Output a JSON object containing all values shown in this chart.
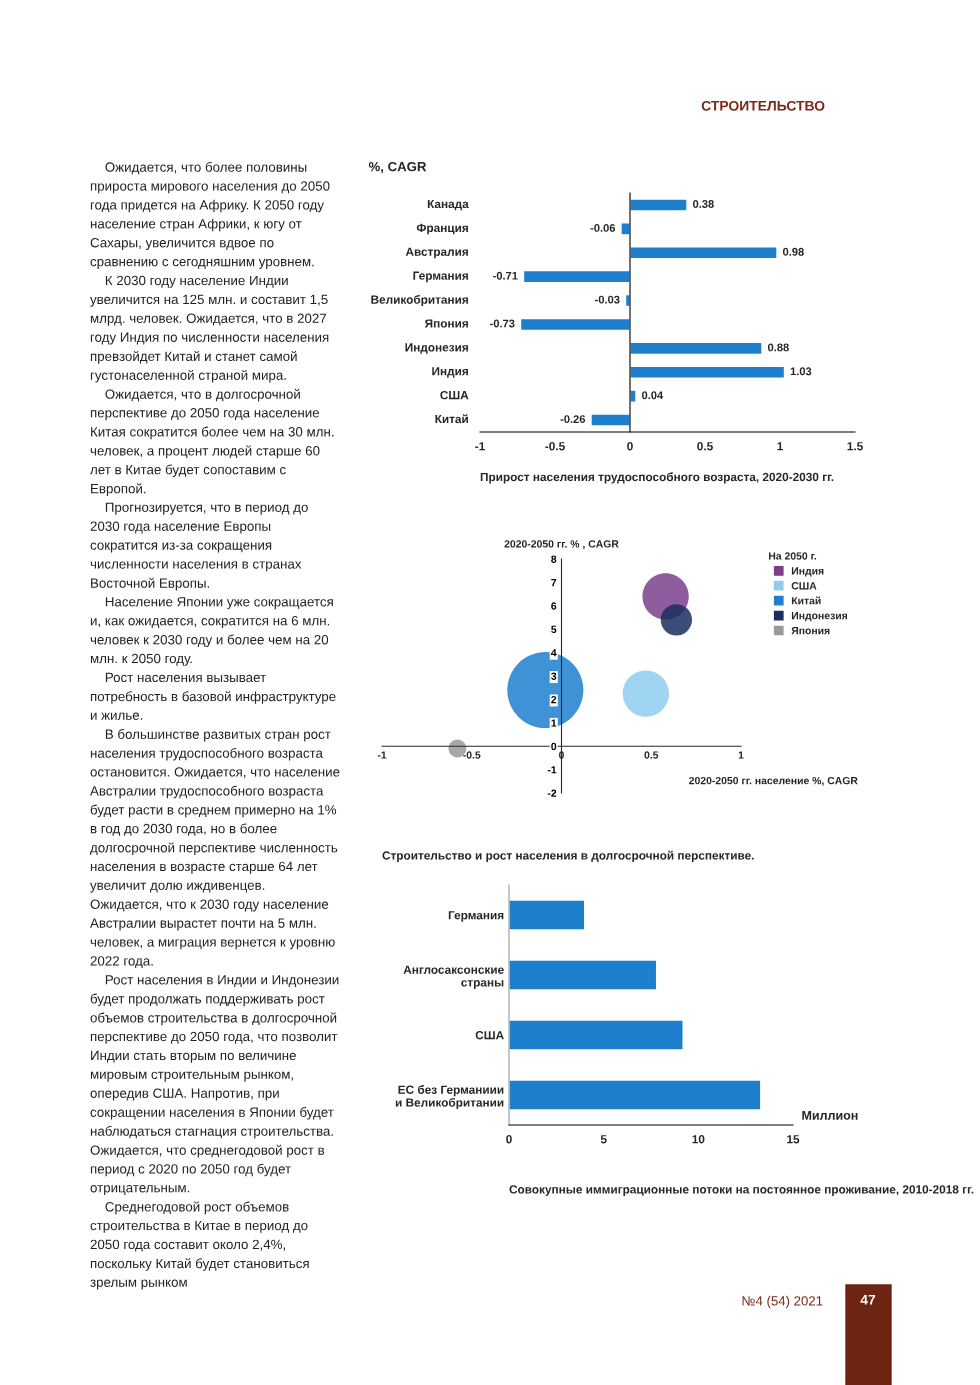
{
  "chart_data": [
    {
      "type": "bar",
      "orientation": "horizontal",
      "title": "Прирост населения трудоспособного возраста, 2020-2030 гг.",
      "ylabel": "%, CAGR",
      "categories": [
        "Канада",
        "Франция",
        "Австралия",
        "Германия",
        "Великобритания",
        "Япония",
        "Индонезия",
        "Индия",
        "США",
        "Китай"
      ],
      "values": [
        0.38,
        -0.06,
        0.98,
        -0.71,
        -0.03,
        -0.73,
        0.88,
        1.03,
        0.04,
        -0.26
      ],
      "color": "#1f7fcf",
      "data_labels": true,
      "xlim": [
        -1,
        1.5
      ],
      "xticks": [
        -1,
        -0.5,
        0,
        0.5,
        1,
        1.5
      ],
      "annotations": [
        "СТРОИТЕЛЬСТВО",
        "Ожидается, что более половины прироста мирового населения до 2050 года придется на Африку. К 2050 году население стран Африки, к югу от Сахары, увеличится вдвое по сравнению с сегодняшним уровнем.",
        "К 2030 году население Индии увеличится на 125 млн. и составит 1,5 млрд. человек. Ожидается, что в 2027 году Индия по численности населения превзойдет Китай и станет самой густонаселенной страной мира.",
        "Ожидается, что в долгосрочной перспективе до 2050 года население Китая сократится более чем на 30 млн. человек, а процент людей старше 60 лет в Китае будет сопоставим с Европой.",
        "Прогнозируется, что в период до 2030 года население Европы сократится из-за сокращения численности населения в странах Восточной Европы.",
        "Население Японии уже сокращается и, как ожидается, сократится на 6 млн. человек к 2030 году и более чем на 20 млн. к 2050 году.",
        "Рост населения вызывает потребность в базовой инфраструктуре и жилье.",
        "В большинстве развитых стран рост населения трудоспособного возраста остановится. Ожидается, что население Австралии трудоспособного возраста будет расти в среднем примерно на 1% в год до 2030 года, но в более долгосрочной перспективе численность населения в возрасте старше 64 лет увеличит долю иждивенцев. Ожидается, что к 2030 году население Австралии вырастет почти на 5 млн. человек, а миграция вернется к уровню 2022 года.",
        "Рост населения в Индии и Индонезии будет продолжать поддерживать рост объемов строительства в долгосрочной перспективе до 2050 года, что позволит Индии стать вторым по величине мировым строительным рынком, опередив США. Напротив, при сокращении населения в Японии будет наблюдаться стагнация строительства. Ожидается, что среднегодовой рост в период с 2020 по 2050 год будет отрицательным.",
        "Среднегодовой рост объемов строительства в Китае в период до 2050 года составит около 2,4%, поскольку Китай будет становиться зрелым рынком"
      ]
    },
    {
      "type": "bubble",
      "title": "Строительство и рост населения в долгосрочной перспективе.",
      "xlabel": "2020-2050 гг. население %, CAGR",
      "ylabel": "2020-2050 гг. % , CAGR",
      "legend_title": "На 2050 г.",
      "legend": "right",
      "series": [
        {
          "name": "Индия",
          "color": "#7b3f8c",
          "x": [
            0.58
          ],
          "values": [
            6.4
          ],
          "sizes": [
            0.37
          ]
        },
        {
          "name": "США",
          "color": "#8ecdf0",
          "x": [
            0.47
          ],
          "values": [
            2.25
          ],
          "sizes": [
            0.37
          ]
        },
        {
          "name": "Китай",
          "color": "#1f7fcf",
          "x": [
            -0.09
          ],
          "values": [
            2.4
          ],
          "sizes": [
            1
          ]
        },
        {
          "name": "Индонезия",
          "color": "#1a2e5e",
          "x": [
            0.64
          ],
          "values": [
            5.4
          ],
          "sizes": [
            0.17
          ]
        },
        {
          "name": "Япония",
          "color": "#999999",
          "x": [
            -0.58
          ],
          "values": [
            -0.1
          ],
          "sizes": [
            0.055
          ]
        }
      ],
      "xlim": [
        -1,
        1
      ],
      "xticks": [
        -1,
        -0.5,
        0,
        0.5,
        1
      ],
      "ylim": [
        -2,
        8
      ],
      "yticks": [
        -2,
        -1,
        0,
        1,
        2,
        3,
        4,
        5,
        6,
        7,
        8
      ]
    },
    {
      "type": "bar",
      "orientation": "horizontal",
      "title": "Совокупные иммиграционные потоки на постоянное проживание, 2010-2018 гг.",
      "xlabel": "Миллион",
      "categories": [
        "Германия",
        "Англосаксонские\nстраны",
        "США",
        "ЕС без Германиии\nи Великобритании"
      ],
      "values": [
        4.0,
        7.8,
        9.2,
        13.3
      ],
      "color": "#1f7fcf",
      "xlim": [
        0,
        15
      ],
      "xticks": [
        0,
        5,
        10,
        15
      ],
      "annotations": [
        "№4 (54) 2021",
        "47"
      ]
    }
  ]
}
